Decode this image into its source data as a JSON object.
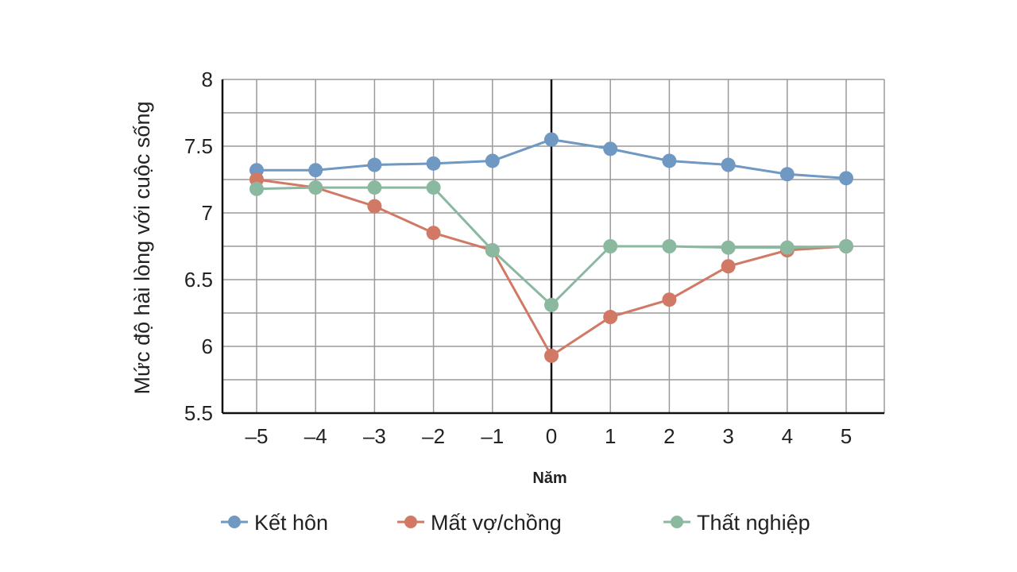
{
  "chart_data": {
    "type": "line",
    "title": "",
    "xlabel": "Năm",
    "ylabel": "Mức độ hài lòng với cuộc sống",
    "x": [
      -5,
      -4,
      -3,
      -2,
      -1,
      0,
      1,
      2,
      3,
      4,
      5
    ],
    "x_tick_labels": [
      "–5",
      "–4",
      "–3",
      "–2",
      "–1",
      "0",
      "1",
      "2",
      "3",
      "4",
      "5"
    ],
    "y_ticks": [
      5.5,
      6,
      6.5,
      7,
      7.5,
      8
    ],
    "y_tick_labels": [
      "5.5",
      "6",
      "6.5",
      "7",
      "7.5",
      "8"
    ],
    "ylim": [
      5.5,
      8
    ],
    "xlim": [
      -5.57,
      5.65
    ],
    "grid": true,
    "legend_position": "bottom",
    "series": [
      {
        "name": "Kết hôn",
        "color": "#6f98c2",
        "values": [
          7.32,
          7.32,
          7.36,
          7.37,
          7.39,
          7.55,
          7.48,
          7.39,
          7.36,
          7.29,
          7.26
        ]
      },
      {
        "name": "Mất vợ/chồng",
        "color": "#d27966",
        "values": [
          7.25,
          7.19,
          7.05,
          6.85,
          6.72,
          5.93,
          6.22,
          6.35,
          6.6,
          6.72,
          6.75
        ]
      },
      {
        "name": "Thất nghiệp",
        "color": "#8bb9a0",
        "values": [
          7.18,
          7.19,
          7.19,
          7.19,
          6.72,
          6.31,
          6.75,
          6.75,
          6.74,
          6.74,
          6.75
        ]
      }
    ]
  }
}
